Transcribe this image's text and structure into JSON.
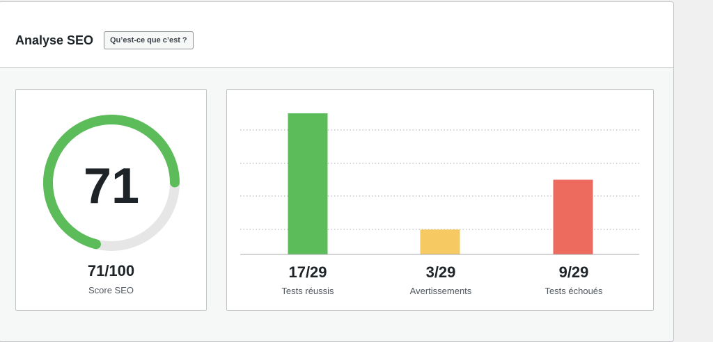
{
  "header": {
    "title": "Analyse SEO",
    "help_label": "Qu’est-ce que c’est ?"
  },
  "score": {
    "value": 71,
    "max": 100,
    "display_value": "71",
    "summary": "71/100",
    "label": "Score SEO",
    "colors": {
      "progress": "#5cbc5a",
      "track": "#e6e6e6"
    }
  },
  "tests": [
    {
      "value": "17/29",
      "label": "Tests réussis"
    },
    {
      "value": "3/29",
      "label": "Avertissements"
    },
    {
      "value": "9/29",
      "label": "Tests échoués"
    }
  ],
  "chart_data": {
    "type": "bar",
    "categories": [
      "Tests réussis",
      "Avertissements",
      "Tests échoués"
    ],
    "values": [
      17,
      3,
      9
    ],
    "ylim": [
      0,
      20
    ],
    "grid": true,
    "colors": [
      "#5cbc5a",
      "#f7c962",
      "#ec6a5e"
    ]
  }
}
